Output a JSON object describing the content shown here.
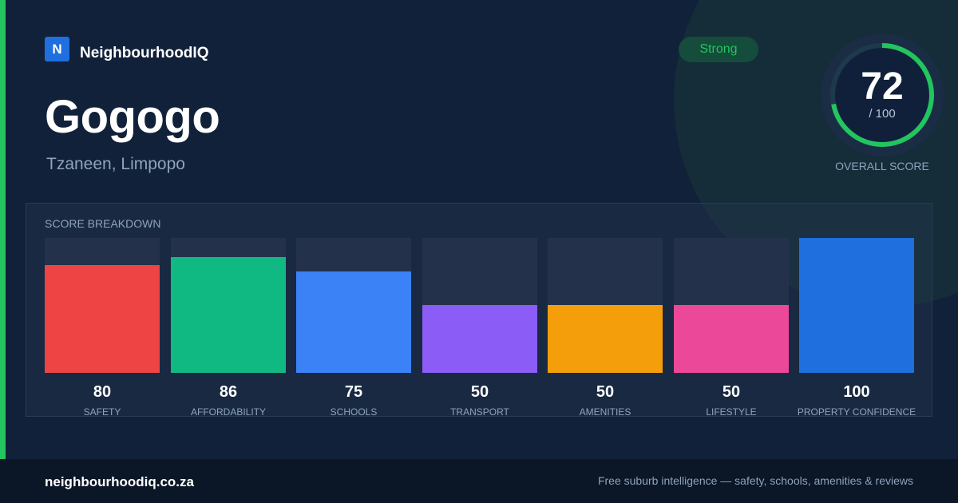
{
  "brand": {
    "logo_letter": "N",
    "name": "NeighbourhoodIQ"
  },
  "suburb": {
    "name": "Gogogo",
    "location": "Tzaneen, Limpopo"
  },
  "badge": {
    "label": "Strong",
    "color": "#22c55e"
  },
  "overall": {
    "score": "72",
    "max_text": "/ 100",
    "score_value": 72,
    "max_value": 100,
    "label": "OVERALL SCORE",
    "ring_color": "#22c55e"
  },
  "colors": {
    "accent": "#22c55e",
    "brand": "#1f6fde",
    "background": "#112139"
  },
  "breakdown": {
    "title": "SCORE BREAKDOWN",
    "max": 100,
    "items": [
      {
        "label": "SAFETY",
        "value": "80",
        "score": 80,
        "color": "#ef4444"
      },
      {
        "label": "AFFORDABILITY",
        "value": "86",
        "score": 86,
        "color": "#10b981"
      },
      {
        "label": "SCHOOLS",
        "value": "75",
        "score": 75,
        "color": "#3b82f6"
      },
      {
        "label": "TRANSPORT",
        "value": "50",
        "score": 50,
        "color": "#8b5cf6"
      },
      {
        "label": "AMENITIES",
        "value": "50",
        "score": 50,
        "color": "#f59e0b"
      },
      {
        "label": "LIFESTYLE",
        "value": "50",
        "score": 50,
        "color": "#ec4899"
      },
      {
        "label": "PROPERTY CONFIDENCE",
        "value": "100",
        "score": 100,
        "color": "#1f6fde"
      }
    ]
  },
  "footer": {
    "domain": "neighbourhoodiq.co.za",
    "tagline": "Free suburb intelligence — safety, schools, amenities & reviews"
  }
}
